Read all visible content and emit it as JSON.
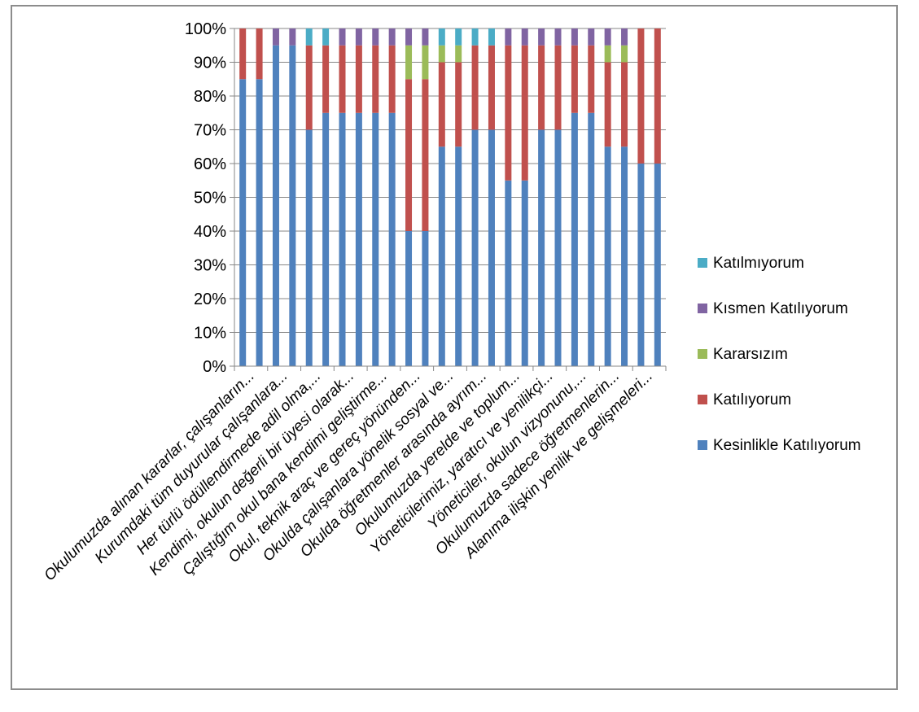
{
  "chart_data": {
    "type": "bar",
    "stacked": "percent",
    "ylim": [
      0,
      100
    ],
    "yticks": [
      "0%",
      "10%",
      "20%",
      "30%",
      "40%",
      "50%",
      "60%",
      "70%",
      "80%",
      "90%",
      "100%"
    ],
    "grid": true,
    "legend_position": "right",
    "category_labels": [
      "Okulumuzda alınan kararlar, çalışanların...",
      "Kurumdaki tüm duyurular çalışanlara...",
      "Her türlü ödüllendirmede adil olma,...",
      "Kendimi, okulun değerli bir üyesi olarak...",
      "Çalıştığım okul bana kendimi geliştirme...",
      "Okul, teknik araç ve gereç yönünden...",
      "Okulda çalışanlara yönelik sosyal ve...",
      "Okulda öğretmenler arasında ayrım...",
      "Okulumuzda yerelde ve toplum...",
      "Yöneticilerimiz, yaratıcı ve yenilikçi...",
      "Yöneticiler, okulun vizyonunu,...",
      "Okulumuzda sadece öğretmenlerin...",
      "Alanıma ilişkin yenilik ve gelişmeleri..."
    ],
    "bars_per_label": 2,
    "series": [
      {
        "name": "Kesinlikle Katılıyorum",
        "color": "#4f81bd",
        "values": [
          85,
          85,
          95,
          95,
          70,
          75,
          75,
          75,
          75,
          75,
          40,
          40,
          65,
          65,
          70,
          70,
          55,
          55,
          70,
          70,
          75,
          75,
          65,
          65,
          60,
          60
        ]
      },
      {
        "name": "Katılıyorum",
        "color": "#c0504d",
        "values": [
          15,
          15,
          0,
          0,
          25,
          20,
          20,
          20,
          20,
          20,
          45,
          45,
          25,
          25,
          25,
          25,
          40,
          40,
          25,
          25,
          20,
          20,
          25,
          25,
          40,
          40
        ]
      },
      {
        "name": "Kararsızım",
        "color": "#9bbb59",
        "values": [
          0,
          0,
          0,
          0,
          0,
          0,
          0,
          0,
          0,
          0,
          10,
          10,
          5,
          5,
          0,
          0,
          0,
          0,
          0,
          0,
          0,
          0,
          5,
          5,
          0,
          0
        ]
      },
      {
        "name": "Kısmen Katılıyorum",
        "color": "#8064a2",
        "values": [
          0,
          0,
          5,
          5,
          0,
          0,
          5,
          5,
          5,
          5,
          5,
          5,
          0,
          0,
          0,
          0,
          5,
          5,
          5,
          5,
          5,
          5,
          5,
          5,
          0,
          0
        ]
      },
      {
        "name": "Katılmıyorum",
        "color": "#4bacc6",
        "values": [
          0,
          0,
          0,
          0,
          5,
          5,
          0,
          0,
          0,
          0,
          0,
          0,
          5,
          5,
          5,
          5,
          0,
          0,
          0,
          0,
          0,
          0,
          0,
          0,
          0,
          0
        ]
      }
    ],
    "legend_order": [
      "Katılmıyorum",
      "Kısmen Katılıyorum",
      "Kararsızım",
      "Katılıyorum",
      "Kesinlikle Katılıyorum"
    ]
  }
}
